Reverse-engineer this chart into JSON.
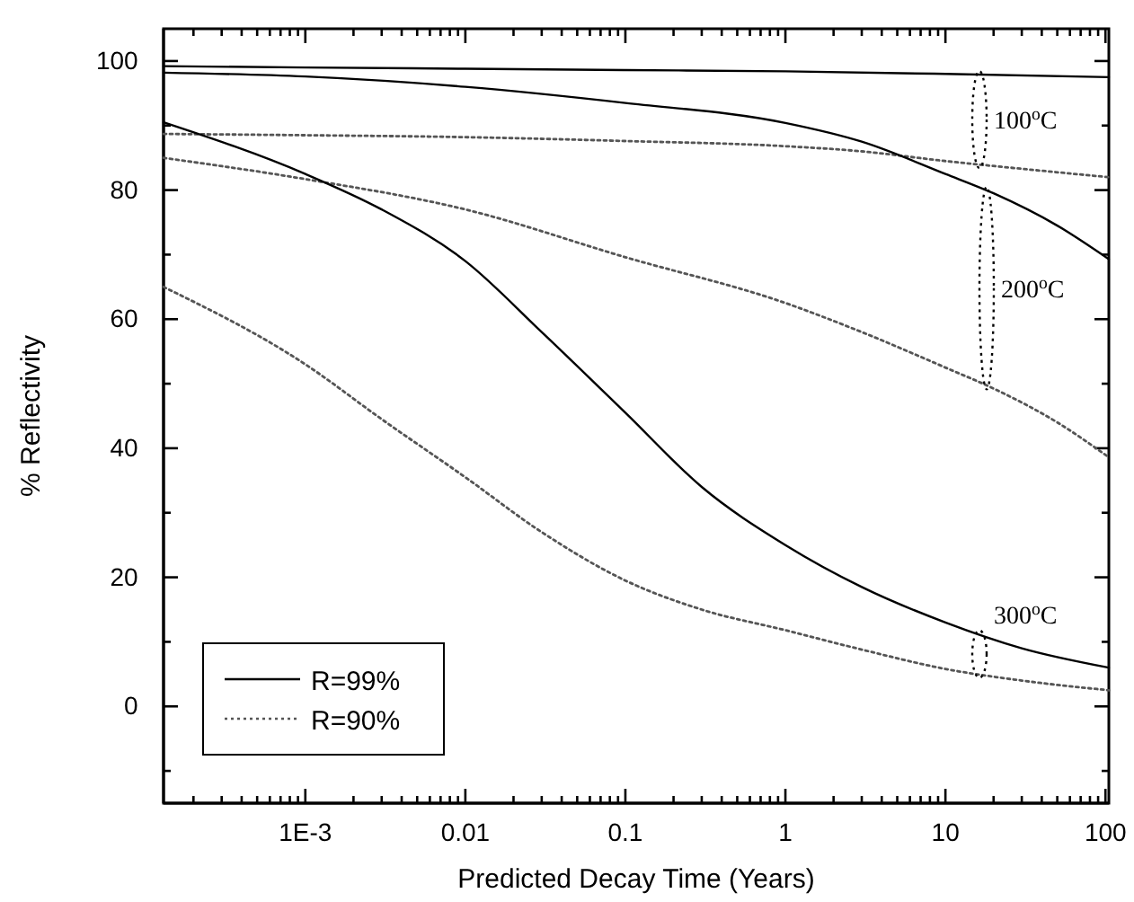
{
  "chart_data": {
    "type": "line",
    "xlabel": "Predicted Decay Time (Years)",
    "ylabel": "% Reflectivity",
    "log": "x",
    "xlim": [
      0.00013,
      105
    ],
    "ylim": [
      -15,
      105
    ],
    "xticks": [
      {
        "value": 0.0002,
        "label": null
      },
      {
        "value": 0.0003,
        "label": null
      },
      {
        "value": 0.0004,
        "label": null
      },
      {
        "value": 0.0005,
        "label": null
      },
      {
        "value": 0.0006,
        "label": null
      },
      {
        "value": 0.0007,
        "label": null
      },
      {
        "value": 0.0008,
        "label": null
      },
      {
        "value": 0.0009,
        "label": null
      },
      {
        "value": 0.001,
        "label": "1E-3"
      },
      {
        "value": 0.002,
        "label": null
      },
      {
        "value": 0.003,
        "label": null
      },
      {
        "value": 0.004,
        "label": null
      },
      {
        "value": 0.005,
        "label": null
      },
      {
        "value": 0.006,
        "label": null
      },
      {
        "value": 0.007,
        "label": null
      },
      {
        "value": 0.008,
        "label": null
      },
      {
        "value": 0.009,
        "label": null
      },
      0.01,
      {
        "value": 0.02,
        "label": null
      },
      {
        "value": 0.03,
        "label": null
      },
      {
        "value": 0.04,
        "label": null
      },
      {
        "value": 0.05,
        "label": null
      },
      {
        "value": 0.06,
        "label": null
      },
      {
        "value": 0.07,
        "label": null
      },
      {
        "value": 0.08,
        "label": null
      },
      {
        "value": 0.09,
        "label": null
      },
      0.1,
      {
        "value": 0.2,
        "label": null
      },
      {
        "value": 0.3,
        "label": null
      },
      {
        "value": 0.4,
        "label": null
      },
      {
        "value": 0.5,
        "label": null
      },
      {
        "value": 0.6,
        "label": null
      },
      {
        "value": 0.7,
        "label": null
      },
      {
        "value": 0.8,
        "label": null
      },
      {
        "value": 0.9,
        "label": null
      },
      1,
      {
        "value": 2,
        "label": null
      },
      {
        "value": 3,
        "label": null
      },
      {
        "value": 4,
        "label": null
      },
      {
        "value": 5,
        "label": null
      },
      {
        "value": 6,
        "label": null
      },
      {
        "value": 7,
        "label": null
      },
      {
        "value": 8,
        "label": null
      },
      {
        "value": 9,
        "label": null
      },
      10,
      {
        "value": 20,
        "label": null
      },
      {
        "value": 30,
        "label": null
      },
      {
        "value": 40,
        "label": null
      },
      {
        "value": 50,
        "label": null
      },
      {
        "value": 60,
        "label": null
      },
      {
        "value": 70,
        "label": null
      },
      {
        "value": 80,
        "label": null
      },
      {
        "value": 90,
        "label": null
      },
      100
    ],
    "yticks": [
      {
        "value": -10,
        "label": null
      },
      0,
      {
        "value": 10,
        "label": null
      },
      20,
      {
        "value": 30,
        "label": null
      },
      40,
      {
        "value": 50,
        "label": null
      },
      60,
      {
        "value": 70,
        "label": null
      },
      80,
      {
        "value": 90,
        "label": null
      },
      100
    ],
    "legend": "bottom left",
    "grid": false,
    "series": [
      {
        "name": "R=99%",
        "color": "#000000",
        "line_style": "solid",
        "x": [
          0.00013,
          0.001,
          0.01,
          0.1,
          1,
          10,
          105
        ],
        "values": [
          99.2,
          99,
          98.8,
          98.6,
          98.4,
          98,
          97.5
        ]
      },
      {
        "name": "R=90%",
        "color": "#555555",
        "line_style": "dotted",
        "x": [
          0.00013,
          0.001,
          0.01,
          0.1,
          1,
          3,
          10,
          30,
          105
        ],
        "values": [
          88.7,
          88.5,
          88.2,
          87.6,
          86.8,
          86,
          84.5,
          83.3,
          82
        ]
      },
      {
        "color": "#000000",
        "line_style": "solid",
        "x": [
          0.00013,
          0.001,
          0.01,
          0.1,
          1,
          3,
          10,
          20,
          50,
          105
        ],
        "values": [
          98.2,
          97.6,
          96,
          93.5,
          90.4,
          87.5,
          82.5,
          79.5,
          74.5,
          69.3
        ]
      },
      {
        "color": "#555555",
        "line_style": "dotted",
        "x": [
          0.00013,
          0.001,
          0.01,
          0.1,
          1,
          3,
          10,
          21,
          50,
          105
        ],
        "values": [
          85,
          81.7,
          77,
          69.6,
          62.5,
          58,
          52.5,
          49,
          44,
          38.6
        ]
      },
      {
        "color": "#000000",
        "line_style": "solid",
        "x": [
          0.00013,
          0.001,
          0.003,
          0.01,
          0.03,
          0.1,
          0.3,
          1,
          3,
          10,
          30,
          105
        ],
        "values": [
          90.5,
          82.5,
          77,
          69,
          58,
          45.5,
          34,
          25,
          18.5,
          13,
          9,
          6
        ]
      },
      {
        "color": "#555555",
        "line_style": "dotted",
        "x": [
          0.00013,
          0.001,
          0.003,
          0.01,
          0.03,
          0.1,
          0.3,
          1,
          3,
          10,
          30,
          105
        ],
        "values": [
          65,
          53,
          44.5,
          35.5,
          27,
          19.5,
          15,
          11.8,
          8.8,
          5.8,
          4,
          2.5
        ]
      }
    ],
    "annotations": [
      "100$^{o}$C",
      "200$^{o}$C",
      "300$^{o}$C"
    ]
  }
}
